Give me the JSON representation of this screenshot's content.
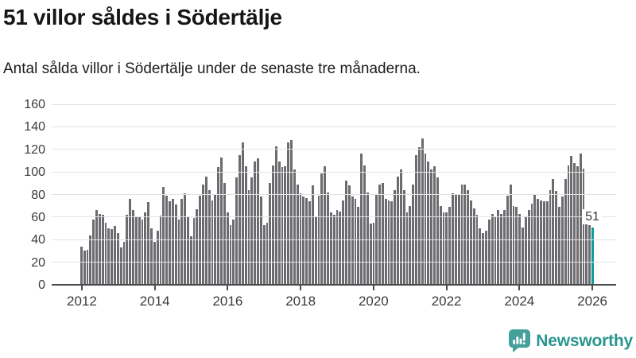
{
  "header": {
    "title": "51 villor såldes i Södertälje",
    "subtitle": "Antal sålda villor i Södertälje under de senaste tre månaderna."
  },
  "logo": {
    "text": "Newsworthy",
    "icon": "speech-bubble-bar-chart-icon",
    "icon_color": "#44a09b",
    "text_color": "#2a968f"
  },
  "colors": {
    "bar": "#6b6b70",
    "accent": "#0f9b9c",
    "grid": "#e3e3e3",
    "axis": "#4d4d4d",
    "axis_text": "#3c3c3c",
    "title_text": "#161616"
  },
  "chart_data": {
    "type": "bar",
    "title": "51 villor såldes i Södertälje",
    "subtitle": "Antal sålda villor i Södertälje under de senaste tre månaderna.",
    "x_start": "2012-01",
    "frequency": "monthly",
    "xlabel": "",
    "ylabel": "",
    "ylim": [
      0,
      160
    ],
    "yticks": [
      0,
      20,
      40,
      60,
      80,
      100,
      120,
      140,
      160
    ],
    "xtick_years": [
      2012,
      2014,
      2016,
      2018,
      2020,
      2022,
      2024,
      2026
    ],
    "grid": true,
    "legend": "none",
    "bar_color": "#6b6b70",
    "values": [
      34,
      30,
      31,
      44,
      58,
      66,
      63,
      62,
      55,
      50,
      49,
      52,
      46,
      33,
      38,
      62,
      76,
      66,
      60,
      60,
      58,
      64,
      73,
      50,
      38,
      48,
      61,
      87,
      79,
      74,
      76,
      71,
      58,
      76,
      81,
      60,
      43,
      59,
      67,
      79,
      89,
      96,
      84,
      75,
      80,
      104,
      113,
      90,
      64,
      53,
      58,
      95,
      115,
      126,
      105,
      84,
      95,
      109,
      112,
      78,
      53,
      55,
      90,
      106,
      123,
      109,
      104,
      105,
      126,
      128,
      102,
      89,
      81,
      78,
      77,
      74,
      88,
      60,
      79,
      99,
      105,
      82,
      64,
      62,
      66,
      65,
      75,
      92,
      88,
      78,
      76,
      69,
      116,
      106,
      82,
      54,
      55,
      80,
      89,
      90,
      76,
      75,
      74,
      84,
      96,
      102,
      84,
      64,
      70,
      89,
      115,
      122,
      130,
      116,
      109,
      102,
      105,
      95,
      70,
      64,
      64,
      69,
      81,
      80,
      80,
      89,
      89,
      84,
      75,
      68,
      62,
      50,
      46,
      48,
      58,
      63,
      60,
      66,
      63,
      66,
      79,
      89,
      70,
      69,
      63,
      51,
      60,
      66,
      72,
      80,
      76,
      75,
      74,
      74,
      84,
      94,
      83,
      69,
      78,
      94,
      106,
      114,
      108,
      105,
      116,
      103,
      60,
      53,
      51
    ],
    "highlight": {
      "index": 168,
      "value": 51,
      "label": "51",
      "color": "#0f9b9c",
      "period": "2026-01"
    }
  }
}
